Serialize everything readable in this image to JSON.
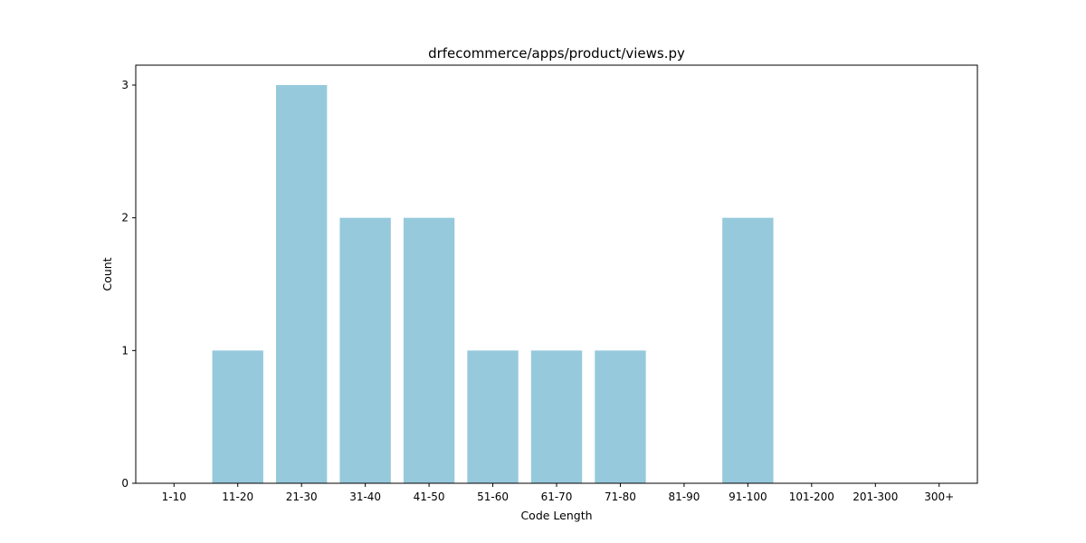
{
  "chart_data": {
    "type": "bar",
    "title": "drfecommerce/apps/product/views.py",
    "xlabel": "Code Length",
    "ylabel": "Count",
    "categories": [
      "1-10",
      "11-20",
      "21-30",
      "31-40",
      "41-50",
      "51-60",
      "61-70",
      "71-80",
      "81-90",
      "91-100",
      "101-200",
      "201-300",
      "300+"
    ],
    "values": [
      0,
      1,
      3,
      2,
      2,
      1,
      1,
      1,
      0,
      2,
      0,
      0,
      0
    ],
    "yticks": [
      0,
      1,
      2,
      3
    ],
    "ylim": [
      0,
      3.15
    ],
    "bar_color": "#96c9dc",
    "grid": false,
    "legend": "none"
  }
}
